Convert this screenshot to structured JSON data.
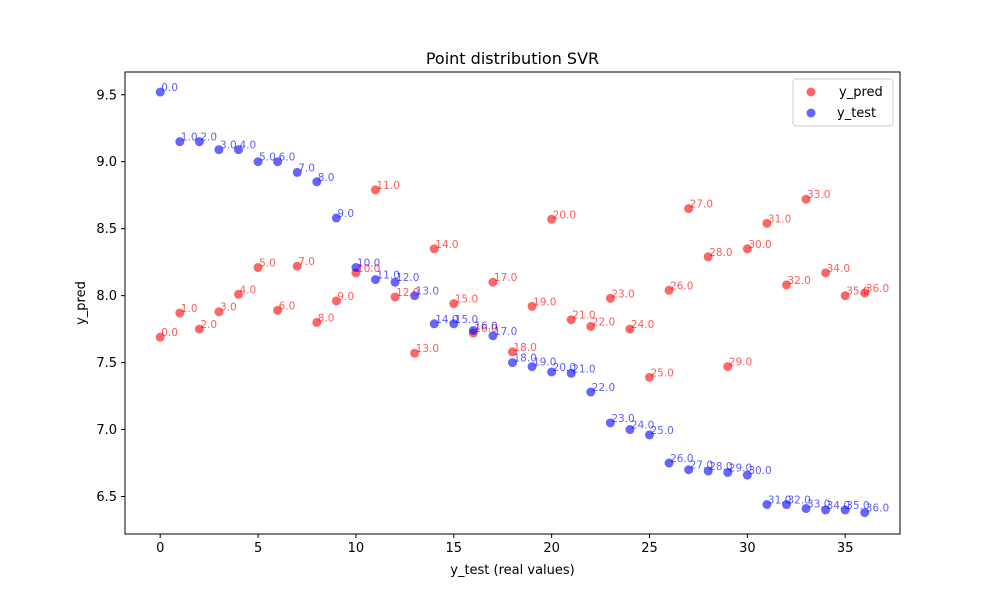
{
  "chart_data": {
    "type": "scatter",
    "title": "Point distribution SVR",
    "xlabel": "y_test (real values)",
    "ylabel": "y_pred",
    "xlim": [
      -1.8,
      37.8
    ],
    "ylim": [
      6.22,
      9.67
    ],
    "xticks": [
      "0",
      "5",
      "10",
      "15",
      "20",
      "25",
      "30",
      "35"
    ],
    "xtick_values": [
      0,
      5,
      10,
      15,
      20,
      25,
      30,
      35
    ],
    "yticks": [
      "6.5",
      "7.0",
      "7.5",
      "8.0",
      "8.5",
      "9.0",
      "9.5"
    ],
    "ytick_values": [
      6.5,
      7.0,
      7.5,
      8.0,
      8.5,
      9.0,
      9.5
    ],
    "grid": false,
    "legend_position": "top-right",
    "series": [
      {
        "name": "y_pred",
        "color": "#ff0000",
        "x": [
          0,
          1,
          2,
          3,
          4,
          5,
          6,
          7,
          8,
          9,
          10,
          11,
          12,
          13,
          14,
          15,
          16,
          17,
          18,
          19,
          20,
          21,
          22,
          23,
          24,
          25,
          26,
          27,
          28,
          29,
          30,
          31,
          32,
          33,
          34,
          35,
          36
        ],
        "y": [
          7.69,
          7.87,
          7.75,
          7.88,
          8.01,
          8.21,
          7.89,
          8.22,
          7.8,
          7.96,
          8.17,
          8.79,
          7.99,
          7.57,
          8.35,
          7.94,
          7.72,
          8.1,
          7.58,
          7.92,
          8.57,
          7.82,
          7.77,
          7.98,
          7.75,
          7.39,
          8.04,
          8.65,
          8.29,
          7.47,
          8.35,
          8.54,
          8.08,
          8.72,
          8.17,
          8.0,
          8.02
        ],
        "labels": [
          "0.0",
          "1.0",
          "2.0",
          "3.0",
          "4.0",
          "5.0",
          "6.0",
          "7.0",
          "8.0",
          "9.0",
          "10.0",
          "11.0",
          "12.0",
          "13.0",
          "14.0",
          "15.0",
          "16.0",
          "17.0",
          "18.0",
          "19.0",
          "20.0",
          "21.0",
          "22.0",
          "23.0",
          "24.0",
          "25.0",
          "26.0",
          "27.0",
          "28.0",
          "29.0",
          "30.0",
          "31.0",
          "32.0",
          "33.0",
          "34.0",
          "35.0",
          "36.0"
        ]
      },
      {
        "name": "y_test",
        "color": "#0000ff",
        "x": [
          0,
          1,
          2,
          3,
          4,
          5,
          6,
          7,
          8,
          9,
          10,
          11,
          12,
          13,
          14,
          15,
          16,
          17,
          18,
          19,
          20,
          21,
          22,
          23,
          24,
          25,
          26,
          27,
          28,
          29,
          30,
          31,
          32,
          33,
          34,
          35,
          36
        ],
        "y": [
          9.52,
          9.15,
          9.15,
          9.09,
          9.09,
          9.0,
          9.0,
          8.92,
          8.85,
          8.58,
          8.21,
          8.12,
          8.1,
          8.0,
          7.79,
          7.79,
          7.74,
          7.7,
          7.5,
          7.47,
          7.43,
          7.42,
          7.28,
          7.05,
          7.0,
          6.96,
          6.75,
          6.7,
          6.69,
          6.68,
          6.66,
          6.44,
          6.44,
          6.41,
          6.4,
          6.4,
          6.38
        ],
        "labels": [
          "0.0",
          "1.0",
          "2.0",
          "3.0",
          "4.0",
          "5.0",
          "6.0",
          "7.0",
          "8.0",
          "9.0",
          "10.0",
          "11.0",
          "12.0",
          "13.0",
          "14.0",
          "15.0",
          "16.0",
          "17.0",
          "18.0",
          "19.0",
          "20.0",
          "21.0",
          "22.0",
          "23.0",
          "24.0",
          "25.0",
          "26.0",
          "27.0",
          "28.0",
          "29.0",
          "30.0",
          "31.0",
          "32.0",
          "33.0",
          "34.0",
          "35.0",
          "36.0"
        ]
      }
    ]
  }
}
